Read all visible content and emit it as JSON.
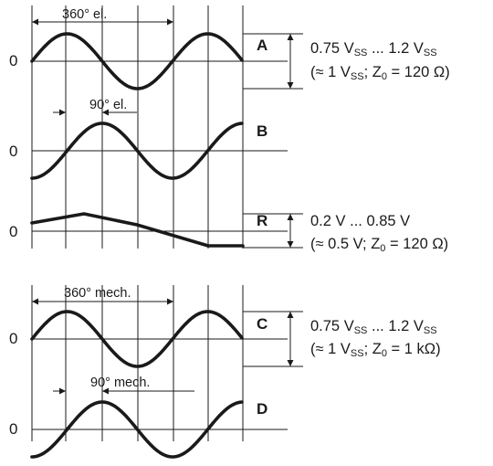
{
  "zero_label": "0",
  "signals": [
    {
      "name": "A",
      "spec_line1": "0.75 Vₛₛ ... 1.2 Vₛₛ",
      "spec_line1_a": "0.75 V",
      "spec_line1_b": " ... 1.2 V",
      "spec_line2_a": "(≈ 1 V",
      "spec_line2_b": "; Z",
      "spec_line2_c": " = 120 Ω)"
    },
    {
      "name": "B"
    },
    {
      "name": "R",
      "spec_line1": "0.2 V ... 0.85 V",
      "spec_line2_a": "(≈ 0.5 V; Z",
      "spec_line2_c": " = 120 Ω)"
    },
    {
      "name": "C",
      "spec_line1_a": "0.75 V",
      "spec_line1_b": " ... 1.2 V",
      "spec_line2_a": "(≈ 1 V",
      "spec_line2_b": "; Z",
      "spec_line2_c": " = 1 kΩ)"
    },
    {
      "name": "D"
    }
  ],
  "subscript_ss": "SS",
  "subscript_0": "0",
  "dimensions": {
    "period_el": "360° el.",
    "phase_el": "90° el.",
    "period_mech": "360° mech.",
    "phase_mech": "90° mech."
  }
}
